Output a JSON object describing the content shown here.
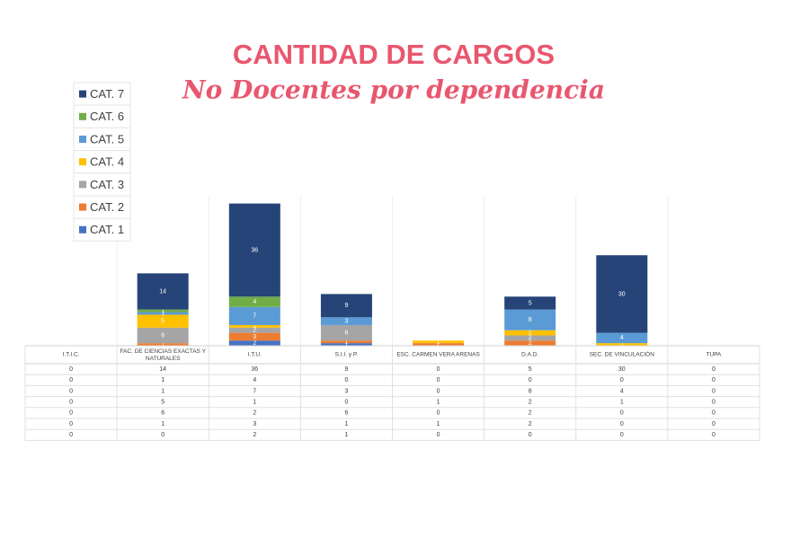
{
  "chart_data": {
    "type": "bar",
    "stacked": true,
    "title": "CANTIDAD DE CARGOS",
    "subtitle": "No Docentes por dependencia",
    "categories": [
      "I.T.I.C.",
      "FAC. DE CIENCIAS EXACTAS Y NATURALES",
      "I.T.U.",
      "S.I.I. y P.",
      "ESC. CARMEN VERA ARENAS",
      "D.A.D.",
      "SEC. DE VINCULACIÓN",
      "TUPA"
    ],
    "series": [
      {
        "name": "CAT. 7",
        "color": "#264478",
        "values": [
          0,
          14,
          36,
          9,
          0,
          5,
          30,
          0
        ]
      },
      {
        "name": "CAT. 6",
        "color": "#70ad47",
        "values": [
          0,
          1,
          4,
          0,
          0,
          0,
          0,
          0
        ]
      },
      {
        "name": "CAT. 5",
        "color": "#5b9bd5",
        "values": [
          0,
          1,
          7,
          3,
          0,
          8,
          4,
          0
        ]
      },
      {
        "name": "CAT. 4",
        "color": "#ffc000",
        "values": [
          0,
          5,
          1,
          0,
          1,
          2,
          1,
          0
        ]
      },
      {
        "name": "CAT. 3",
        "color": "#a5a5a5",
        "values": [
          0,
          6,
          2,
          6,
          0,
          2,
          0,
          0
        ]
      },
      {
        "name": "CAT. 2",
        "color": "#ed7d31",
        "values": [
          0,
          1,
          3,
          1,
          1,
          2,
          0,
          0
        ]
      },
      {
        "name": "CAT. 1",
        "color": "#4472c4",
        "values": [
          0,
          0,
          2,
          1,
          0,
          0,
          0,
          0
        ]
      }
    ],
    "ylim": [
      0,
      58
    ]
  }
}
